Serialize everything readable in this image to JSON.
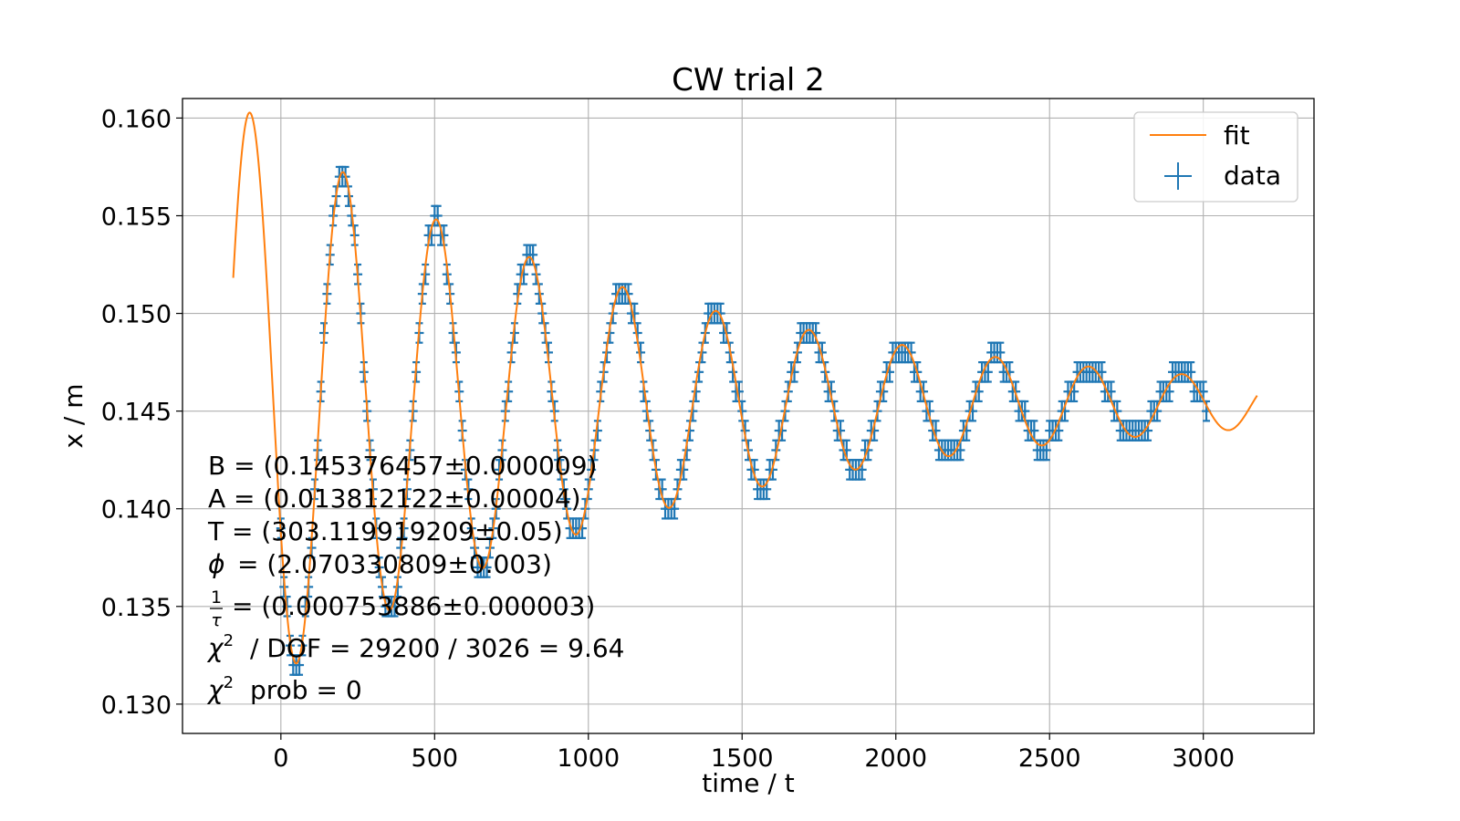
{
  "chart_data": {
    "type": "scatter",
    "title": "CW trial 2",
    "xlabel": "time / t",
    "ylabel": "x / m",
    "xlim": [
      -320,
      3360
    ],
    "ylim": [
      0.1285,
      0.161
    ],
    "xticks": [
      0,
      500,
      1000,
      1500,
      2000,
      2500,
      3000
    ],
    "xtick_labels": [
      "0",
      "500",
      "1000",
      "1500",
      "2000",
      "2500",
      "3000"
    ],
    "yticks": [
      0.13,
      0.135,
      0.14,
      0.145,
      0.15,
      0.155,
      0.16
    ],
    "ytick_labels": [
      "0.130",
      "0.135",
      "0.140",
      "0.145",
      "0.150",
      "0.155",
      "0.160"
    ],
    "grid": true,
    "legend": {
      "placement": "top-right",
      "entries": [
        "fit",
        "data"
      ]
    },
    "colors": {
      "fit": "#ff7f0e",
      "data": "#1f77b4",
      "grid": "#b0b0b0"
    },
    "series": [
      {
        "name": "fit",
        "kind": "line",
        "model": "B + A*exp(-t/tau)*cos(2*pi*t/T + phi)",
        "params": {
          "B": 0.145376457,
          "A": 0.013812122,
          "T": 303.119919209,
          "phi": 2.070330809,
          "inv_tau": 0.000753886
        },
        "x_range": [
          -155,
          3175
        ]
      },
      {
        "name": "data",
        "kind": "errorbar",
        "x_range": [
          0,
          3010
        ],
        "x_step": 10,
        "y_resolution": 0.001,
        "y_error": 0.0005,
        "x_error": 0.5
      }
    ],
    "annotations": [
      "B = (0.145376457±0.000009)",
      "A = (0.013812122±0.00004)",
      "T = (303.119919209±0.05)",
      "= (2.070330809±0.003)",
      "= (0.000753886±0.000003)",
      "/ DOF = 29200 / 3026 = 9.64",
      "prob = 0"
    ]
  }
}
